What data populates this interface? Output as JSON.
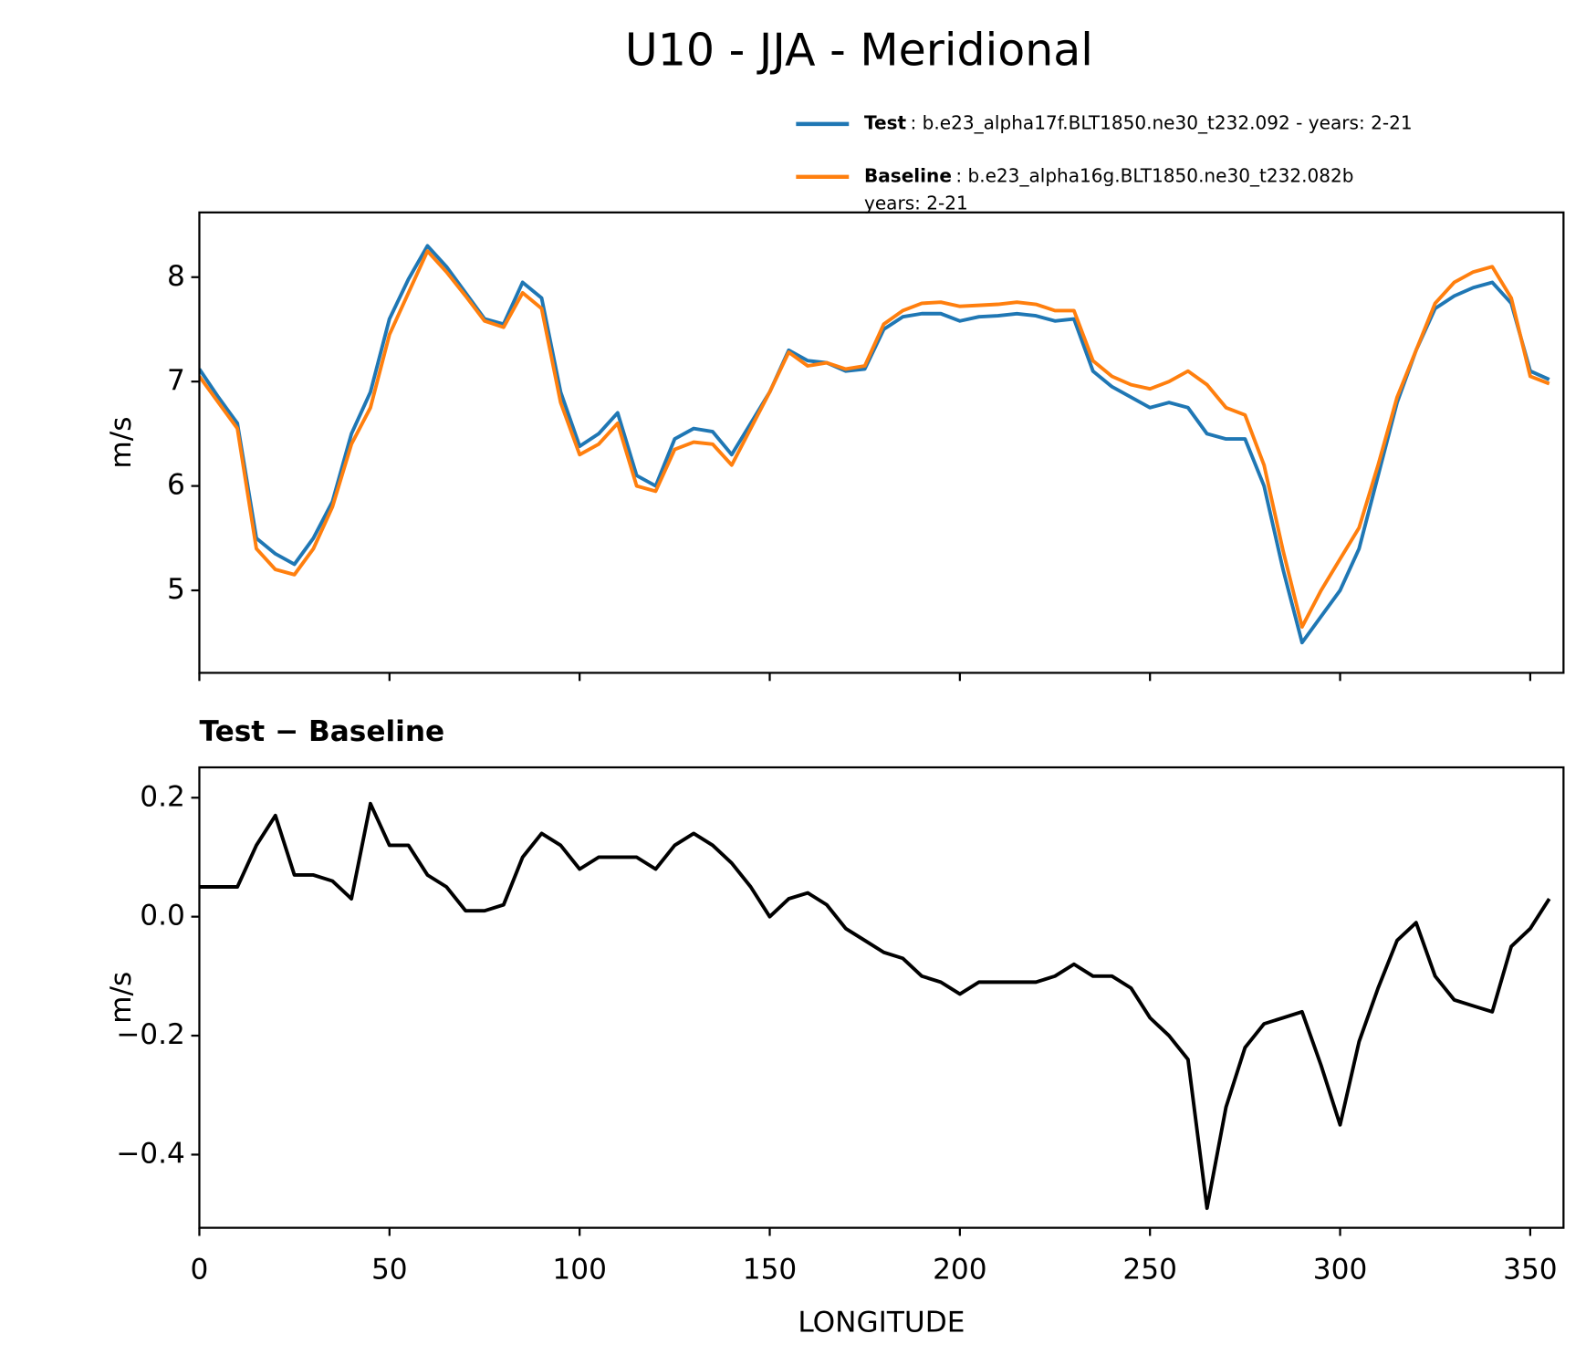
{
  "chart_data": [
    {
      "type": "line",
      "title": "U10 - JJA - Meridional",
      "ylabel": "m/s",
      "x": [
        0,
        5,
        10,
        15,
        20,
        25,
        30,
        35,
        40,
        45,
        50,
        55,
        60,
        65,
        70,
        75,
        80,
        85,
        90,
        95,
        100,
        105,
        110,
        115,
        120,
        125,
        130,
        135,
        140,
        145,
        150,
        155,
        160,
        165,
        170,
        175,
        180,
        185,
        190,
        195,
        200,
        205,
        210,
        215,
        220,
        225,
        230,
        235,
        240,
        245,
        250,
        255,
        260,
        265,
        270,
        275,
        280,
        285,
        290,
        295,
        300,
        305,
        310,
        315,
        320,
        325,
        330,
        335,
        340,
        345,
        350,
        355
      ],
      "series": [
        {
          "name": "Test",
          "description": [
            ": b.e23_alpha17f.BLT1850.ne30_t232.092 - years: 2-21"
          ],
          "color": "#1f77b4",
          "values": [
            7.12,
            6.85,
            6.6,
            5.5,
            5.35,
            5.25,
            5.5,
            5.85,
            6.5,
            6.9,
            7.6,
            7.98,
            8.3,
            8.1,
            7.85,
            7.6,
            7.55,
            7.95,
            7.8,
            6.9,
            6.38,
            6.5,
            6.7,
            6.1,
            6.0,
            6.45,
            6.55,
            6.52,
            6.3,
            6.6,
            6.9,
            7.3,
            7.2,
            7.18,
            7.1,
            7.12,
            7.5,
            7.62,
            7.65,
            7.65,
            7.58,
            7.62,
            7.63,
            7.65,
            7.63,
            7.58,
            7.6,
            7.1,
            6.95,
            6.85,
            6.75,
            6.8,
            6.75,
            6.5,
            6.45,
            6.45,
            6.0,
            5.2,
            4.5,
            4.75,
            5.0,
            5.4,
            6.1,
            6.8,
            7.3,
            7.7,
            7.82,
            7.9,
            7.95,
            7.75,
            7.1,
            7.02
          ]
        },
        {
          "name": "Baseline",
          "description": [
            ": b.e23_alpha16g.BLT1850.ne30_t232.082b",
            "years: 2-21"
          ],
          "color": "#ff7f0e",
          "values": [
            7.05,
            6.8,
            6.55,
            5.4,
            5.2,
            5.15,
            5.4,
            5.8,
            6.4,
            6.75,
            7.45,
            7.85,
            8.25,
            8.05,
            7.82,
            7.58,
            7.52,
            7.85,
            7.7,
            6.8,
            6.3,
            6.4,
            6.6,
            6.0,
            5.95,
            6.35,
            6.42,
            6.4,
            6.2,
            6.55,
            6.9,
            7.28,
            7.15,
            7.18,
            7.12,
            7.15,
            7.55,
            7.68,
            7.75,
            7.76,
            7.72,
            7.73,
            7.74,
            7.76,
            7.74,
            7.68,
            7.68,
            7.2,
            7.05,
            6.97,
            6.93,
            7.0,
            7.1,
            6.97,
            6.75,
            6.68,
            6.2,
            5.38,
            4.65,
            5.0,
            5.3,
            5.6,
            6.2,
            6.85,
            7.3,
            7.75,
            7.95,
            8.05,
            8.1,
            7.8,
            7.05,
            6.98
          ]
        }
      ],
      "xlim": [
        0,
        358.75
      ],
      "xticks": [
        0,
        50,
        100,
        150,
        200,
        250,
        300,
        350
      ],
      "ylim": [
        4.21,
        8.62
      ],
      "yticks": [
        5,
        6,
        7,
        8
      ]
    },
    {
      "type": "line",
      "title": "Test − Baseline",
      "ylabel": "m/s",
      "xlabel": "LONGITUDE",
      "x": [
        0,
        5,
        10,
        15,
        20,
        25,
        30,
        35,
        40,
        45,
        50,
        55,
        60,
        65,
        70,
        75,
        80,
        85,
        90,
        95,
        100,
        105,
        110,
        115,
        120,
        125,
        130,
        135,
        140,
        145,
        150,
        155,
        160,
        165,
        170,
        175,
        180,
        185,
        190,
        195,
        200,
        205,
        210,
        215,
        220,
        225,
        230,
        235,
        240,
        245,
        250,
        255,
        260,
        265,
        270,
        275,
        280,
        285,
        290,
        295,
        300,
        305,
        310,
        315,
        320,
        325,
        330,
        335,
        340,
        345,
        350,
        355
      ],
      "color": "#000000",
      "values": [
        0.05,
        0.05,
        0.05,
        0.12,
        0.17,
        0.07,
        0.07,
        0.06,
        0.03,
        0.19,
        0.12,
        0.12,
        0.07,
        0.05,
        0.01,
        0.01,
        0.02,
        0.1,
        0.14,
        0.12,
        0.08,
        0.1,
        0.1,
        0.1,
        0.08,
        0.12,
        0.14,
        0.12,
        0.09,
        0.05,
        0.0,
        0.03,
        0.04,
        0.02,
        -0.02,
        -0.04,
        -0.06,
        -0.07,
        -0.1,
        -0.11,
        -0.13,
        -0.11,
        -0.11,
        -0.11,
        -0.11,
        -0.1,
        -0.08,
        -0.1,
        -0.1,
        -0.12,
        -0.17,
        -0.2,
        -0.24,
        -0.49,
        -0.32,
        -0.22,
        -0.18,
        -0.17,
        -0.16,
        -0.25,
        -0.35,
        -0.21,
        -0.12,
        -0.04,
        -0.01,
        -0.1,
        -0.14,
        -0.15,
        -0.16,
        -0.05,
        -0.02,
        0.03
      ],
      "xlim": [
        0,
        358.75
      ],
      "xticks": [
        0,
        50,
        100,
        150,
        200,
        250,
        300,
        350
      ],
      "ylim": [
        -0.523,
        0.251
      ],
      "yticks": [
        {
          "value": 0.2,
          "label": "0.2"
        },
        {
          "value": 0.0,
          "label": "0.0"
        },
        {
          "value": -0.2,
          "label": "−0.2"
        },
        {
          "value": -0.4,
          "label": "−0.4"
        }
      ]
    }
  ]
}
